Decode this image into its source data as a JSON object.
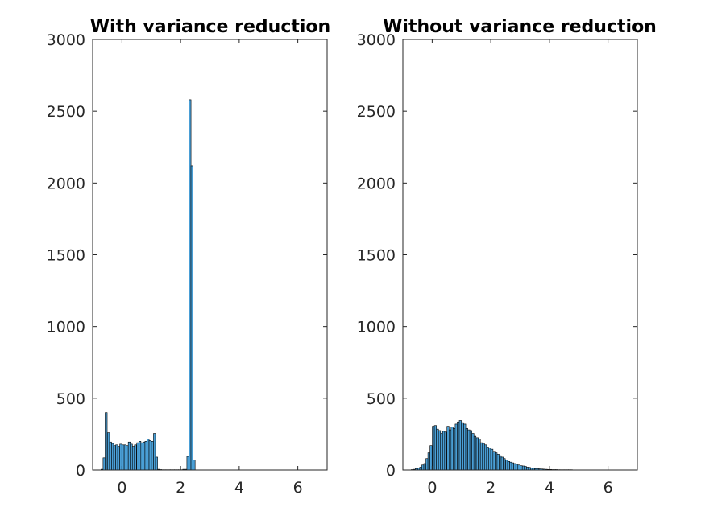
{
  "chart_data": [
    {
      "type": "bar",
      "title": "With variance reduction",
      "xlabel": "",
      "ylabel": "",
      "xlim": [
        -1,
        7
      ],
      "ylim": [
        0,
        3000
      ],
      "xticks": [
        0,
        2,
        4,
        6
      ],
      "xtick_labels": [
        "0",
        "2",
        "4",
        "6"
      ],
      "yticks": [
        0,
        500,
        1000,
        1500,
        2000,
        2500,
        3000
      ],
      "ytick_labels": [
        "0",
        "500",
        "1000",
        "1500",
        "2000",
        "2500",
        "3000"
      ],
      "grid": false,
      "legend": "none",
      "bar_color": "#4a9fd6",
      "bin_width": 0.0714,
      "x": [
        -0.68,
        -0.61,
        -0.54,
        -0.46,
        -0.39,
        -0.32,
        -0.25,
        -0.18,
        -0.11,
        -0.04,
        0.04,
        0.11,
        0.18,
        0.25,
        0.32,
        0.39,
        0.46,
        0.54,
        0.61,
        0.68,
        0.75,
        0.82,
        0.89,
        0.96,
        1.04,
        1.11,
        1.18,
        1.25,
        1.32,
        1.39,
        1.46,
        1.54,
        1.61,
        1.68,
        1.75,
        1.82,
        1.89,
        1.96,
        2.04,
        2.11,
        2.18,
        2.25,
        2.32,
        2.39,
        2.46
      ],
      "values": [
        5,
        85,
        400,
        260,
        195,
        185,
        170,
        175,
        165,
        180,
        175,
        175,
        170,
        195,
        180,
        165,
        175,
        190,
        200,
        190,
        195,
        200,
        215,
        205,
        200,
        255,
        90,
        5,
        3,
        2,
        2,
        2,
        2,
        2,
        2,
        2,
        2,
        2,
        2,
        5,
        5,
        95,
        2580,
        2120,
        70
      ]
    },
    {
      "type": "bar",
      "title": "Without variance reduction",
      "xlabel": "",
      "ylabel": "",
      "xlim": [
        -1,
        7
      ],
      "ylim": [
        0,
        3000
      ],
      "xticks": [
        0,
        2,
        4,
        6
      ],
      "xtick_labels": [
        "0",
        "2",
        "4",
        "6"
      ],
      "yticks": [
        0,
        500,
        1000,
        1500,
        2000,
        2500,
        3000
      ],
      "ytick_labels": [
        "0",
        "500",
        "1000",
        "1500",
        "2000",
        "2500",
        "3000"
      ],
      "grid": false,
      "legend": "none",
      "bar_color": "#4a9fd6",
      "bin_width": 0.0714,
      "x": [
        -0.68,
        -0.61,
        -0.54,
        -0.46,
        -0.39,
        -0.32,
        -0.25,
        -0.18,
        -0.11,
        -0.04,
        0.04,
        0.11,
        0.18,
        0.25,
        0.32,
        0.39,
        0.46,
        0.54,
        0.61,
        0.68,
        0.75,
        0.82,
        0.89,
        0.96,
        1.04,
        1.11,
        1.18,
        1.25,
        1.32,
        1.39,
        1.46,
        1.54,
        1.61,
        1.68,
        1.75,
        1.82,
        1.89,
        1.96,
        2.04,
        2.11,
        2.18,
        2.25,
        2.32,
        2.39,
        2.46,
        2.54,
        2.61,
        2.68,
        2.75,
        2.82,
        2.89,
        2.96,
        3.04,
        3.11,
        3.18,
        3.25,
        3.32,
        3.39,
        3.46,
        3.54,
        3.61,
        3.68,
        3.75,
        3.82,
        3.89,
        3.96,
        4.04,
        4.11,
        4.18,
        4.25,
        4.32,
        4.39,
        4.46,
        4.54,
        4.61,
        4.68,
        4.75,
        4.82,
        4.89,
        4.96,
        5.04,
        5.11,
        5.18,
        5.25,
        5.32,
        5.39,
        5.46,
        5.54,
        5.61,
        5.68,
        5.75,
        5.82,
        5.89,
        5.96,
        6.04,
        6.11,
        6.18,
        6.25,
        6.32,
        6.39,
        6.46,
        6.54
      ],
      "values": [
        3,
        5,
        10,
        15,
        20,
        35,
        45,
        80,
        120,
        170,
        305,
        310,
        285,
        275,
        255,
        270,
        265,
        305,
        280,
        300,
        290,
        320,
        335,
        345,
        330,
        320,
        290,
        280,
        275,
        255,
        235,
        225,
        215,
        190,
        185,
        175,
        160,
        155,
        145,
        130,
        120,
        110,
        100,
        90,
        80,
        70,
        60,
        55,
        50,
        45,
        40,
        35,
        30,
        28,
        25,
        20,
        18,
        15,
        12,
        10,
        9,
        8,
        7,
        6,
        5,
        4,
        4,
        3,
        3,
        3,
        2,
        2,
        2,
        2,
        2,
        2,
        2,
        1,
        1,
        1,
        1,
        1,
        1,
        1,
        1,
        1,
        1,
        1,
        1,
        1,
        1,
        1,
        1,
        1,
        1,
        1,
        1,
        1,
        1,
        1,
        1,
        1
      ]
    }
  ]
}
